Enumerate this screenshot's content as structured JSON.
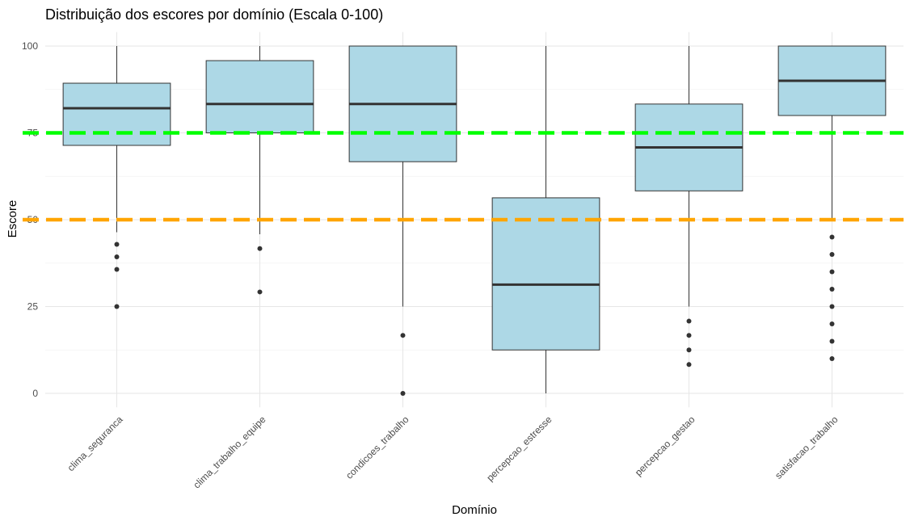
{
  "chart_data": {
    "type": "boxplot",
    "title": "Distribuição dos escores por domínio (Escala 0-100)",
    "xlabel": "Domínio",
    "ylabel": "Escore",
    "ylim": [
      -4,
      104
    ],
    "yticks": [
      0,
      25,
      50,
      75,
      100
    ],
    "ytick_labels": [
      "0",
      "25",
      "50",
      "75",
      "100"
    ],
    "grid": true,
    "box_fill": "#add8e6",
    "reference_lines": [
      {
        "y": 75,
        "color": "#00ff00",
        "style": "dashed"
      },
      {
        "y": 50,
        "color": "#ffa500",
        "style": "dashed"
      }
    ],
    "categories": [
      "clima_seguranca",
      "clima_trabalho_equipe",
      "condicoes_trabalho",
      "percepcao_estresse",
      "percepcao_gestao",
      "satisfacao_trabalho"
    ],
    "boxes": [
      {
        "whisker_low": 46.4,
        "q1": 71.4,
        "median": 82.1,
        "q3": 89.3,
        "whisker_high": 100,
        "outliers": [
          42.9,
          39.3,
          35.7,
          25
        ]
      },
      {
        "whisker_low": 45.8,
        "q1": 75,
        "median": 83.3,
        "q3": 95.8,
        "whisker_high": 100,
        "outliers": [
          41.7,
          29.2
        ]
      },
      {
        "whisker_low": 25,
        "q1": 66.7,
        "median": 83.3,
        "q3": 100,
        "whisker_high": 100,
        "outliers": [
          16.7,
          0
        ]
      },
      {
        "whisker_low": 0,
        "q1": 12.5,
        "median": 31.3,
        "q3": 56.3,
        "whisker_high": 100,
        "outliers": []
      },
      {
        "whisker_low": 25,
        "q1": 58.3,
        "median": 70.8,
        "q3": 83.3,
        "whisker_high": 100,
        "outliers": [
          20.8,
          16.7,
          12.5,
          8.3
        ]
      },
      {
        "whisker_low": 50,
        "q1": 80,
        "median": 90,
        "q3": 100,
        "whisker_high": 100,
        "outliers": [
          45,
          40,
          35,
          30,
          25,
          20,
          15,
          10
        ]
      }
    ]
  }
}
